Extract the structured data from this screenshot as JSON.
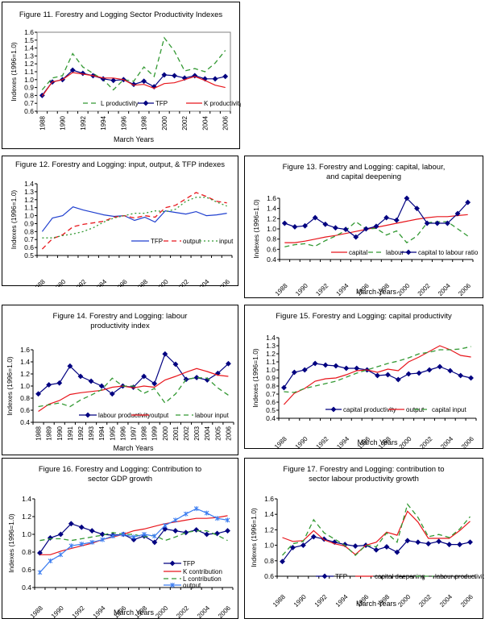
{
  "chart_data": [
    {
      "id": "fig11",
      "type": "line",
      "title": "Figure 11. Forestry and Logging Sector Productivity Indexes",
      "xlabel": "March Years",
      "ylabel": "Indexes (1996=1.0)",
      "ylim": [
        0.6,
        1.6
      ],
      "yticks": [
        0.6,
        0.7,
        0.8,
        0.9,
        1.0,
        1.1,
        1.2,
        1.3,
        1.4,
        1.5,
        1.6
      ],
      "ytick_labels": [
        "0.6",
        "0.7",
        "0.8",
        "0.9",
        "1.0",
        "1.1",
        "1.2",
        "1.3",
        "1.4",
        "1.5",
        "1.6"
      ],
      "x": [
        1988,
        1989,
        1990,
        1991,
        1992,
        1993,
        1994,
        1995,
        1996,
        1997,
        1998,
        1999,
        2000,
        2001,
        2002,
        2003,
        2004,
        2005,
        2006
      ],
      "xtick_labels": [
        "1988",
        "1990",
        "1992",
        "1994",
        "1996",
        "1998",
        "2000",
        "2002",
        "2004",
        "2006"
      ],
      "xtick_rotation": "vertical",
      "legend_position": "inside-bottom",
      "series": [
        {
          "name": "L productivity",
          "color": "#339933",
          "style": "dash",
          "marker": "none",
          "values": [
            0.87,
            1.02,
            1.05,
            1.33,
            1.16,
            1.08,
            1.0,
            0.87,
            1.0,
            0.98,
            1.16,
            1.04,
            1.53,
            1.36,
            1.11,
            1.14,
            1.1,
            1.21,
            1.37
          ]
        },
        {
          "name": "TFP",
          "color": "#000080",
          "style": "solid",
          "marker": "diamond",
          "values": [
            0.8,
            0.97,
            1.0,
            1.12,
            1.08,
            1.05,
            1.01,
            0.99,
            1.0,
            0.94,
            0.98,
            0.91,
            1.06,
            1.05,
            1.02,
            1.05,
            1.01,
            1.01,
            1.04
          ]
        },
        {
          "name": "K productivity",
          "color": "#e8161c",
          "style": "solid",
          "marker": "none",
          "values": [
            0.79,
            0.97,
            1.0,
            1.09,
            1.07,
            1.05,
            1.02,
            1.02,
            1.0,
            0.93,
            0.94,
            0.89,
            0.95,
            0.96,
            1.0,
            1.04,
            0.99,
            0.93,
            0.9
          ]
        }
      ]
    },
    {
      "id": "fig12",
      "type": "line",
      "title": "Figure 12. Forestry and Logging: input, output, & TFP indexes",
      "xlabel": "",
      "ylabel": "Indexes (1996=1.0)",
      "ylim": [
        0.5,
        1.4
      ],
      "yticks": [
        0.5,
        0.6,
        0.7,
        0.8,
        0.9,
        1.0,
        1.1,
        1.2,
        1.3,
        1.4
      ],
      "ytick_labels": [
        "0.5",
        "0.6",
        "0.7",
        "0.8",
        "0.9",
        "1.0",
        "1.1",
        "1.2",
        "1.3",
        "1.4"
      ],
      "x": [
        1988,
        1989,
        1990,
        1991,
        1992,
        1993,
        1994,
        1995,
        1996,
        1997,
        1998,
        1999,
        2000,
        2001,
        2002,
        2003,
        2004,
        2005,
        2006
      ],
      "xtick_labels": [
        "1988",
        "1990",
        "1992",
        "1994",
        "1996",
        "1998",
        "2000",
        "2002",
        "2004",
        "2006"
      ],
      "xtick_rotation": "diagonal",
      "legend_position": "inside-bottom-right",
      "series": [
        {
          "name": "TFP",
          "color": "#1f3fcf",
          "style": "solid",
          "marker": "none",
          "values": [
            0.8,
            0.97,
            1.0,
            1.11,
            1.07,
            1.04,
            1.01,
            0.99,
            1.0,
            0.94,
            0.98,
            0.92,
            1.06,
            1.04,
            1.02,
            1.05,
            1.0,
            1.01,
            1.03
          ]
        },
        {
          "name": "output",
          "color": "#e8161c",
          "style": "dash",
          "marker": "none",
          "values": [
            0.58,
            0.71,
            0.76,
            0.86,
            0.89,
            0.91,
            0.93,
            0.98,
            1.0,
            0.97,
            1.0,
            0.98,
            1.1,
            1.13,
            1.21,
            1.29,
            1.24,
            1.18,
            1.16
          ]
        },
        {
          "name": "input",
          "color": "#339933",
          "style": "dot",
          "marker": "none",
          "values": [
            0.72,
            0.72,
            0.75,
            0.77,
            0.8,
            0.85,
            0.92,
            0.97,
            1.0,
            1.03,
            1.03,
            1.06,
            1.05,
            1.08,
            1.18,
            1.23,
            1.23,
            1.17,
            1.12
          ]
        }
      ]
    },
    {
      "id": "fig13",
      "type": "line",
      "title": "Figure 13. Forestry and Logging: capital, labour, and capital deepening",
      "xlabel": "March Years",
      "ylabel": "Indexes (1996=1.0)",
      "ylim": [
        0.4,
        1.6
      ],
      "yticks": [
        0.4,
        0.6,
        0.8,
        1.0,
        1.2,
        1.4,
        1.6
      ],
      "ytick_labels": [
        "0.4",
        "0.6",
        "0.8",
        "1.0",
        "1.2",
        "1.4",
        "1.6"
      ],
      "x": [
        1988,
        1989,
        1990,
        1991,
        1992,
        1993,
        1994,
        1995,
        1996,
        1997,
        1998,
        1999,
        2000,
        2001,
        2002,
        2003,
        2004,
        2005,
        2006
      ],
      "xtick_labels": [
        "1988",
        "1990",
        "1992",
        "1994",
        "1996",
        "1998",
        "2000",
        "2002",
        "2004",
        "2006"
      ],
      "xtick_rotation": "diagonal",
      "legend_position": "inside-bottom",
      "series": [
        {
          "name": "capital",
          "color": "#e8161c",
          "style": "solid",
          "marker": "none",
          "values": [
            0.73,
            0.73,
            0.76,
            0.8,
            0.84,
            0.87,
            0.91,
            0.95,
            0.99,
            1.03,
            1.07,
            1.11,
            1.15,
            1.19,
            1.22,
            1.24,
            1.24,
            1.26,
            1.28
          ]
        },
        {
          "name": "labour",
          "color": "#339933",
          "style": "dash",
          "marker": "none",
          "values": [
            0.65,
            0.69,
            0.71,
            0.66,
            0.77,
            0.86,
            0.97,
            1.14,
            1.0,
            1.01,
            0.88,
            0.96,
            0.73,
            0.86,
            1.12,
            1.14,
            1.14,
            1.0,
            0.86
          ]
        },
        {
          "name": "capital to labour ratio",
          "color": "#000080",
          "style": "solid",
          "marker": "diamond",
          "values": [
            1.11,
            1.04,
            1.06,
            1.22,
            1.09,
            1.02,
            0.99,
            0.84,
            1.0,
            1.05,
            1.22,
            1.17,
            1.6,
            1.4,
            1.11,
            1.11,
            1.11,
            1.3,
            1.52
          ]
        }
      ]
    },
    {
      "id": "fig14",
      "type": "line",
      "title": "Figure 14. Forestry and Logging: labour productivity index",
      "xlabel": "March Years",
      "ylabel": "Indexes (1996=1.0)",
      "ylim": [
        0.4,
        1.6
      ],
      "yticks": [
        0.4,
        0.6,
        0.8,
        1.0,
        1.2,
        1.4,
        1.6
      ],
      "ytick_labels": [
        "0.4",
        "0.6",
        "0.8",
        "1.0",
        "1.2",
        "1.4",
        "1.6"
      ],
      "x": [
        1988,
        1989,
        1990,
        1991,
        1992,
        1993,
        1994,
        1995,
        1996,
        1997,
        1998,
        1999,
        2000,
        2001,
        2002,
        2003,
        2004,
        2005,
        2006
      ],
      "xtick_labels": [
        "1988",
        "1989",
        "1990",
        "1991",
        "1992",
        "1993",
        "1994",
        "1995",
        "1996",
        "1997",
        "1998",
        "1999",
        "2000",
        "2001",
        "2002",
        "2003",
        "2004",
        "2005",
        "2006"
      ],
      "xtick_rotation": "vertical",
      "legend_position": "inside-bottom",
      "series": [
        {
          "name": "labour productivity",
          "color": "#000080",
          "style": "solid",
          "marker": "diamond",
          "values": [
            0.87,
            1.02,
            1.05,
            1.33,
            1.16,
            1.08,
            1.0,
            0.87,
            1.0,
            0.98,
            1.16,
            1.04,
            1.53,
            1.36,
            1.11,
            1.14,
            1.1,
            1.21,
            1.37
          ]
        },
        {
          "name": "output",
          "color": "#e8161c",
          "style": "solid",
          "marker": "none",
          "values": [
            0.58,
            0.7,
            0.76,
            0.86,
            0.89,
            0.91,
            0.93,
            0.98,
            1.0,
            0.97,
            1.0,
            0.98,
            1.1,
            1.16,
            1.23,
            1.29,
            1.24,
            1.18,
            1.16
          ]
        },
        {
          "name": "labour input",
          "color": "#339933",
          "style": "dash",
          "marker": "none",
          "values": [
            0.66,
            0.69,
            0.72,
            0.66,
            0.77,
            0.85,
            0.94,
            1.13,
            1.0,
            1.0,
            0.88,
            0.96,
            0.72,
            0.87,
            1.11,
            1.14,
            1.13,
            0.97,
            0.85
          ]
        }
      ]
    },
    {
      "id": "fig15",
      "type": "line",
      "title": "Figure 15. Forestry and Logging: capital productivity",
      "xlabel": "March Years",
      "ylabel": "Indexes (1996=1.0)",
      "ylim": [
        0.4,
        1.4
      ],
      "yticks": [
        0.4,
        0.5,
        0.6,
        0.7,
        0.8,
        0.9,
        1.0,
        1.1,
        1.2,
        1.3,
        1.4
      ],
      "ytick_labels": [
        "0.4",
        "0.5",
        "0.6",
        "0.7",
        "0.8",
        "0.9",
        "1.0",
        "1.1",
        "1.2",
        "1.3",
        "1.4"
      ],
      "x": [
        1988,
        1989,
        1990,
        1991,
        1992,
        1993,
        1994,
        1995,
        1996,
        1997,
        1998,
        1999,
        2000,
        2001,
        2002,
        2003,
        2004,
        2005,
        2006
      ],
      "xtick_labels": [
        "1988",
        "1990",
        "1992",
        "1994",
        "1996",
        "1998",
        "2000",
        "2002",
        "2004",
        "2006"
      ],
      "xtick_rotation": "diagonal",
      "legend_position": "inside-bottom",
      "series": [
        {
          "name": "capital productivity",
          "color": "#000080",
          "style": "solid",
          "marker": "diamond",
          "values": [
            0.78,
            0.97,
            1.0,
            1.08,
            1.06,
            1.05,
            1.02,
            1.02,
            1.0,
            0.93,
            0.94,
            0.88,
            0.95,
            0.96,
            1.0,
            1.04,
            0.99,
            0.93,
            0.9
          ]
        },
        {
          "name": "output",
          "color": "#e8161c",
          "style": "solid",
          "marker": "none",
          "values": [
            0.57,
            0.71,
            0.77,
            0.86,
            0.89,
            0.9,
            0.94,
            0.99,
            1.0,
            0.97,
            1.01,
            0.99,
            1.1,
            1.16,
            1.23,
            1.3,
            1.25,
            1.18,
            1.16
          ]
        },
        {
          "name": "capital input",
          "color": "#339933",
          "style": "dash",
          "marker": "none",
          "values": [
            0.73,
            0.72,
            0.77,
            0.8,
            0.83,
            0.86,
            0.91,
            0.96,
            1.0,
            1.04,
            1.08,
            1.11,
            1.15,
            1.2,
            1.22,
            1.25,
            1.25,
            1.26,
            1.29
          ]
        }
      ]
    },
    {
      "id": "fig16",
      "type": "line",
      "title": "Figure 16. Forestry and Logging: Contribution to sector GDP growth",
      "xlabel": "March Years",
      "ylabel": "Indexes (1996=1.0)",
      "ylim": [
        0.4,
        1.4
      ],
      "yticks": [
        0.4,
        0.6,
        0.8,
        1.0,
        1.2,
        1.4
      ],
      "ytick_labels": [
        "0.4",
        "0.6",
        "0.8",
        "1.0",
        "1.2",
        "1.4"
      ],
      "x": [
        1988,
        1989,
        1990,
        1991,
        1992,
        1993,
        1994,
        1995,
        1996,
        1997,
        1998,
        1999,
        2000,
        2001,
        2002,
        2003,
        2004,
        2005,
        2006
      ],
      "xtick_labels": [
        "1988",
        "1990",
        "1992",
        "1994",
        "1996",
        "1998",
        "2000",
        "2002",
        "2004",
        "2006"
      ],
      "xtick_rotation": "diagonal",
      "legend_position": "inside-bottom-right",
      "series": [
        {
          "name": "TFP",
          "color": "#000080",
          "style": "solid",
          "marker": "diamond",
          "values": [
            0.79,
            0.96,
            1.0,
            1.12,
            1.08,
            1.04,
            1.0,
            0.99,
            1.0,
            0.94,
            0.98,
            0.91,
            1.06,
            1.04,
            1.02,
            1.05,
            1.0,
            1.01,
            1.04
          ]
        },
        {
          "name": "K contribution",
          "color": "#e8161c",
          "style": "solid",
          "marker": "none",
          "values": [
            0.77,
            0.77,
            0.81,
            0.84,
            0.87,
            0.9,
            0.94,
            0.97,
            1.0,
            1.04,
            1.06,
            1.09,
            1.12,
            1.14,
            1.16,
            1.18,
            1.18,
            1.19,
            1.21
          ]
        },
        {
          "name": "L contribution",
          "color": "#339933",
          "style": "dash",
          "marker": "none",
          "values": [
            0.93,
            0.95,
            0.95,
            0.93,
            0.95,
            0.97,
            0.99,
            1.02,
            1.0,
            1.0,
            0.97,
            0.99,
            0.93,
            0.97,
            1.02,
            1.04,
            1.04,
            0.99,
            0.93
          ]
        },
        {
          "name": "output",
          "color": "#3a7cf0",
          "style": "solid",
          "marker": "cross",
          "values": [
            0.57,
            0.7,
            0.77,
            0.87,
            0.89,
            0.91,
            0.94,
            0.98,
            1.0,
            0.97,
            1.0,
            0.98,
            1.1,
            1.16,
            1.23,
            1.29,
            1.24,
            1.18,
            1.16
          ]
        }
      ]
    },
    {
      "id": "fig17",
      "type": "line",
      "title": "Figure 17. Forestry and Logging: contribution to sector labour productivity growth",
      "xlabel": "March Years",
      "ylabel": "Indexes (1996=1.0)",
      "ylim": [
        0.6,
        1.6
      ],
      "yticks": [
        0.6,
        0.8,
        1.0,
        1.2,
        1.4,
        1.6
      ],
      "ytick_labels": [
        "0.6",
        "0.8",
        "1.0",
        "1.2",
        "1.4",
        "1.6"
      ],
      "x": [
        1988,
        1989,
        1990,
        1991,
        1992,
        1993,
        1994,
        1995,
        1996,
        1997,
        1998,
        1999,
        2000,
        2001,
        2002,
        2003,
        2004,
        2005,
        2006
      ],
      "xtick_labels": [
        "1988",
        "1990",
        "1992",
        "1994",
        "1996",
        "1998",
        "2000",
        "2002",
        "2004",
        "2006"
      ],
      "xtick_rotation": "diagonal",
      "legend_position": "bottom-inside-axis",
      "series": [
        {
          "name": "TFP",
          "color": "#000080",
          "style": "solid",
          "marker": "diamond",
          "values": [
            0.79,
            0.97,
            1.0,
            1.11,
            1.08,
            1.04,
            1.01,
            0.99,
            1.0,
            0.94,
            0.98,
            0.91,
            1.06,
            1.04,
            1.02,
            1.05,
            1.01,
            1.01,
            1.04
          ]
        },
        {
          "name": "capital deepening",
          "color": "#e8161c",
          "style": "solid",
          "marker": "none",
          "values": [
            1.1,
            1.05,
            1.06,
            1.19,
            1.07,
            1.02,
            0.99,
            0.88,
            1.0,
            1.04,
            1.17,
            1.13,
            1.44,
            1.3,
            1.09,
            1.09,
            1.09,
            1.19,
            1.31
          ]
        },
        {
          "name": "labour productivity",
          "color": "#339933",
          "style": "dash",
          "marker": "none",
          "values": [
            0.87,
            1.02,
            1.05,
            1.33,
            1.16,
            1.08,
            1.0,
            0.87,
            1.0,
            0.98,
            1.16,
            1.04,
            1.53,
            1.36,
            1.11,
            1.14,
            1.1,
            1.21,
            1.37
          ]
        }
      ]
    }
  ]
}
